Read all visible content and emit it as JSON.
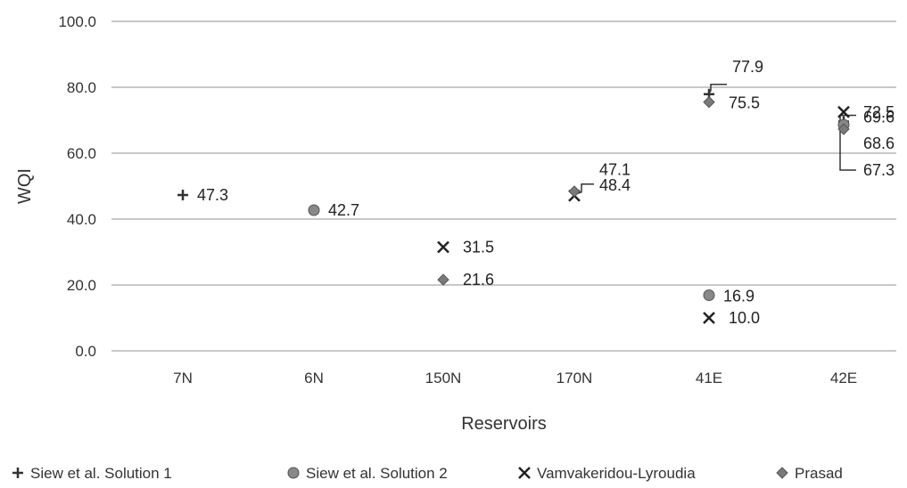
{
  "chart_data": {
    "type": "scatter",
    "title": "",
    "xlabel": "Reservoirs",
    "ylabel": "WQI",
    "categories": [
      "7N",
      "6N",
      "150N",
      "170N",
      "41E",
      "42E"
    ],
    "ylim": [
      0,
      100
    ],
    "y_ticks": [
      "0.0",
      "20.0",
      "40.0",
      "60.0",
      "80.0",
      "100.0"
    ],
    "grid": true,
    "legend_position": "bottom",
    "series": [
      {
        "name": "Siew et al. Solution 1",
        "marker": "plus",
        "color": "#333333",
        "points": [
          {
            "category": "7N",
            "value": 47.3,
            "label": "47.3"
          },
          {
            "category": "41E",
            "value": 77.9,
            "label": "77.9"
          },
          {
            "category": "42E",
            "value": 69.6,
            "label": "69.6"
          }
        ]
      },
      {
        "name": "Siew et al. Solution 2",
        "marker": "circle",
        "color": "#888888",
        "points": [
          {
            "category": "6N",
            "value": 42.7,
            "label": "42.7"
          },
          {
            "category": "41E",
            "value": 16.9,
            "label": "16.9"
          },
          {
            "category": "42E",
            "value": 68.6,
            "label": "68.6"
          }
        ]
      },
      {
        "name": "Vamvakeridou-Lyroudia",
        "marker": "x",
        "color": "#222222",
        "points": [
          {
            "category": "150N",
            "value": 31.5,
            "label": "31.5"
          },
          {
            "category": "170N",
            "value": 47.1,
            "label": "47.1"
          },
          {
            "category": "41E",
            "value": 10.0,
            "label": "10.0"
          },
          {
            "category": "42E",
            "value": 72.5,
            "label": "72.5"
          }
        ]
      },
      {
        "name": "Prasad",
        "marker": "diamond",
        "color": "#7a7a7a",
        "points": [
          {
            "category": "150N",
            "value": 21.6,
            "label": "21.6"
          },
          {
            "category": "170N",
            "value": 48.4,
            "label": "48.4"
          },
          {
            "category": "41E",
            "value": 75.5,
            "label": "75.5"
          },
          {
            "category": "42E",
            "value": 67.3,
            "label": "67.3"
          }
        ]
      }
    ]
  }
}
